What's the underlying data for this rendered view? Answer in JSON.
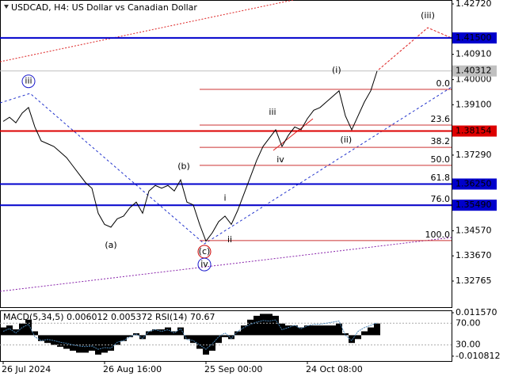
{
  "chart_data": {
    "type": "line",
    "title": "USDCAD, H4:  US Dollar vs Canadian Dollar",
    "color": "#000000",
    "categories": [
      "26 Jul 2024",
      null,
      null,
      null,
      null,
      null,
      null,
      null,
      null,
      null,
      null,
      null,
      null,
      null,
      null,
      null,
      "26 Aug 16:00",
      null,
      null,
      null,
      null,
      null,
      null,
      null,
      null,
      null,
      null,
      null,
      null,
      null,
      null,
      null,
      "25 Sep 00:00",
      null,
      null,
      null,
      null,
      null,
      null,
      null,
      null,
      null,
      null,
      null,
      null,
      null,
      null,
      null,
      "24 Oct 08:00",
      null,
      null,
      null,
      null,
      null,
      null,
      null,
      null,
      null,
      null,
      null
    ],
    "values": [
      1.385,
      1.3865,
      1.3845,
      1.388,
      1.39,
      1.383,
      1.378,
      1.377,
      1.376,
      1.374,
      1.372,
      1.369,
      1.366,
      1.363,
      1.361,
      1.352,
      1.348,
      1.347,
      1.35,
      1.351,
      1.354,
      1.356,
      1.352,
      1.36,
      1.362,
      1.361,
      1.362,
      1.36,
      1.364,
      1.356,
      1.355,
      1.348,
      1.342,
      1.345,
      1.349,
      1.351,
      1.348,
      1.353,
      1.359,
      1.365,
      1.371,
      1.376,
      1.379,
      1.382,
      1.376,
      1.38,
      1.383,
      1.382,
      1.386,
      1.389,
      1.39,
      1.392,
      1.394,
      1.396,
      1.387,
      1.382,
      1.387,
      1.392,
      1.396,
      1.4031
    ],
    "ylim": [
      1.31827,
      1.42862
    ],
    "yticks": [
      {
        "value": 1.4272,
        "label": "1.42720"
      },
      {
        "value": 1.4091,
        "label": "1.40910"
      },
      {
        "value": 1.4,
        "label": "1.40000"
      },
      {
        "value": 1.391,
        "label": "1.39100"
      },
      {
        "value": 1.3729,
        "label": "1.37290"
      },
      {
        "value": 1.3457,
        "label": "1.34570"
      },
      {
        "value": 1.3367,
        "label": "1.33670"
      },
      {
        "value": 1.32765,
        "label": "1.32765"
      }
    ],
    "levels": [
      {
        "value": 1.415,
        "label": "1.41500",
        "color": "#0000cc"
      },
      {
        "value": 1.40312,
        "label": "1.40312",
        "color": "#c0c0c0"
      },
      {
        "value": 1.38154,
        "label": "1.38154",
        "color": "#dd0000"
      },
      {
        "value": 1.3625,
        "label": "1.36250",
        "color": "#0000cc"
      },
      {
        "value": 1.3549,
        "label": "1.35490",
        "color": "#0000cc"
      }
    ],
    "fib_start": 31,
    "fib_levels": [
      {
        "label": "0.0",
        "value": 1.3965
      },
      {
        "label": "23.6",
        "value": 1.3837
      },
      {
        "label": "38.2",
        "value": 1.3757
      },
      {
        "label": "50.0",
        "value": 1.3692
      },
      {
        "label": "61.8",
        "value": 1.3626
      },
      {
        "label": "76.0",
        "value": 1.355
      },
      {
        "label": "100.0",
        "value": 1.3422
      }
    ],
    "annotations": [
      {
        "text": "iii",
        "at": 4,
        "price": 1.3994,
        "color": "#1a1acc",
        "circled": true
      },
      {
        "text": "(a)",
        "at": 17,
        "price": 1.3405,
        "color": "#cc0000"
      },
      {
        "text": "(b)",
        "at": 28.5,
        "price": 1.3687,
        "color": "#cc0000"
      },
      {
        "text": "(c)",
        "at": 31.75,
        "price": 1.3382,
        "color": "#cc0000",
        "circled": true
      },
      {
        "text": "iv",
        "at": 31.75,
        "price": 1.3336,
        "color": "#1a1acc",
        "circled": true
      },
      {
        "text": "i",
        "at": 35,
        "price": 1.3574,
        "color": "#707070"
      },
      {
        "text": "ii",
        "at": 35.75,
        "price": 1.3424,
        "color": "#707070"
      },
      {
        "text": "iii",
        "at": 42.5,
        "price": 1.3882,
        "color": "#707070"
      },
      {
        "text": "iv",
        "at": 43.75,
        "price": 1.3711,
        "color": "#707070"
      },
      {
        "text": "(i)",
        "at": 52.6,
        "price": 1.4033,
        "color": "#cc0000"
      },
      {
        "text": "(ii)",
        "at": 54.1,
        "price": 1.3783,
        "color": "#cc0000"
      },
      {
        "text": "(iii)",
        "at": 67,
        "price": 1.4229,
        "color": "#cc0000"
      }
    ],
    "indicator": {
      "type": "bar",
      "label": "MACD(5,34,5) 0.006012 0.005372 RSI(14) 70.67",
      "color": "#000000",
      "values": [
        0.004,
        0.005,
        0.003,
        0.006,
        0.008,
        0.002,
        -0.003,
        -0.004,
        -0.005,
        -0.006,
        -0.007,
        -0.008,
        -0.009,
        -0.009,
        -0.008,
        -0.01,
        -0.009,
        -0.008,
        -0.005,
        -0.003,
        -0.001,
        0.001,
        -0.002,
        0.002,
        0.003,
        0.003,
        0.004,
        0.002,
        0.004,
        -0.002,
        -0.004,
        -0.007,
        -0.01,
        -0.008,
        -0.004,
        -0.001,
        -0.002,
        0.002,
        0.005,
        0.008,
        0.01,
        0.011,
        0.011,
        0.01,
        0.006,
        0.005,
        0.005,
        0.004,
        0.005,
        0.005,
        0.005,
        0.005,
        0.005,
        0.006,
        0.001,
        -0.004,
        -0.002,
        0.002,
        0.004,
        0.006012
      ],
      "ylim": [
        -0.0133,
        0.01281
      ],
      "yticks": [
        {
          "value": 0.01157,
          "label": "0.011570"
        },
        {
          "value": -0.010812,
          "label": "-0.010812"
        }
      ],
      "rsi_color": "#4682b4",
      "rsi_values": [
        55,
        60,
        52,
        62,
        68,
        45,
        38,
        40,
        38,
        35,
        33,
        30,
        28,
        27,
        28,
        22,
        25,
        24,
        35,
        38,
        45,
        50,
        42,
        55,
        58,
        55,
        58,
        52,
        60,
        40,
        38,
        30,
        22,
        32,
        45,
        52,
        42,
        55,
        62,
        68,
        72,
        75,
        74,
        76,
        58,
        62,
        66,
        60,
        65,
        68,
        68,
        70,
        72,
        74,
        48,
        38,
        55,
        62,
        66,
        70.67
      ],
      "rsi_ylim": [
        0.4,
        93.7
      ],
      "rsi_yticks": [
        {
          "value": 70,
          "label": "70.00"
        },
        {
          "value": 30,
          "label": "30.00"
        }
      ]
    }
  }
}
